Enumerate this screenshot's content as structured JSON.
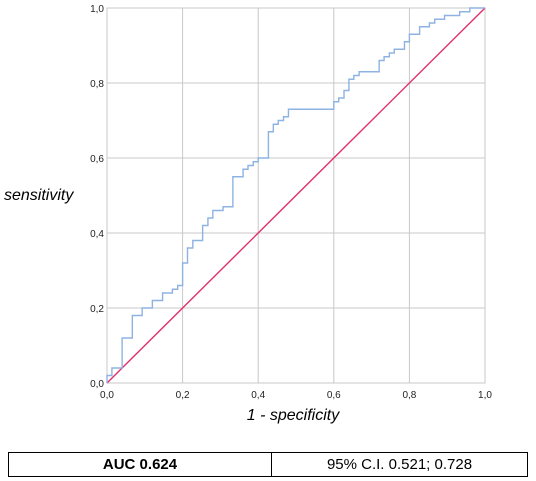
{
  "chart_data": {
    "type": "line",
    "xlabel": "1 - specificity",
    "ylabel": "sensitivity",
    "xlim": [
      0,
      1
    ],
    "ylim": [
      0,
      1
    ],
    "grid": true,
    "x_ticks": [
      "0,0",
      "0,2",
      "0,4",
      "0,6",
      "0,8",
      "1,0"
    ],
    "y_ticks": [
      "0,0",
      "0,2",
      "0,4",
      "0,6",
      "0,8",
      "1,0"
    ],
    "colors": {
      "roc": "#8db3e2",
      "reference": "#e0306c",
      "grid": "#c8c8c8"
    },
    "series": [
      {
        "points": [
          [
            0,
            0
          ],
          [
            0,
            0.02
          ],
          [
            0.013,
            0.02
          ],
          [
            0.013,
            0.04
          ],
          [
            0.04,
            0.04
          ],
          [
            0.04,
            0.12
          ],
          [
            0.067,
            0.12
          ],
          [
            0.067,
            0.18
          ],
          [
            0.093,
            0.18
          ],
          [
            0.093,
            0.2
          ],
          [
            0.12,
            0.2
          ],
          [
            0.12,
            0.22
          ],
          [
            0.147,
            0.22
          ],
          [
            0.147,
            0.24
          ],
          [
            0.173,
            0.24
          ],
          [
            0.173,
            0.25
          ],
          [
            0.187,
            0.25
          ],
          [
            0.187,
            0.26
          ],
          [
            0.2,
            0.26
          ],
          [
            0.2,
            0.32
          ],
          [
            0.213,
            0.32
          ],
          [
            0.213,
            0.36
          ],
          [
            0.227,
            0.36
          ],
          [
            0.227,
            0.38
          ],
          [
            0.253,
            0.38
          ],
          [
            0.253,
            0.42
          ],
          [
            0.267,
            0.42
          ],
          [
            0.267,
            0.44
          ],
          [
            0.28,
            0.44
          ],
          [
            0.28,
            0.46
          ],
          [
            0.307,
            0.46
          ],
          [
            0.307,
            0.47
          ],
          [
            0.333,
            0.47
          ],
          [
            0.333,
            0.55
          ],
          [
            0.36,
            0.55
          ],
          [
            0.36,
            0.57
          ],
          [
            0.373,
            0.57
          ],
          [
            0.373,
            0.58
          ],
          [
            0.387,
            0.58
          ],
          [
            0.387,
            0.59
          ],
          [
            0.4,
            0.59
          ],
          [
            0.4,
            0.6
          ],
          [
            0.427,
            0.6
          ],
          [
            0.427,
            0.67
          ],
          [
            0.44,
            0.67
          ],
          [
            0.44,
            0.69
          ],
          [
            0.453,
            0.69
          ],
          [
            0.453,
            0.7
          ],
          [
            0.467,
            0.7
          ],
          [
            0.467,
            0.71
          ],
          [
            0.48,
            0.71
          ],
          [
            0.48,
            0.73
          ],
          [
            0.6,
            0.73
          ],
          [
            0.6,
            0.75
          ],
          [
            0.613,
            0.75
          ],
          [
            0.613,
            0.76
          ],
          [
            0.627,
            0.76
          ],
          [
            0.627,
            0.78
          ],
          [
            0.64,
            0.78
          ],
          [
            0.64,
            0.81
          ],
          [
            0.653,
            0.81
          ],
          [
            0.653,
            0.82
          ],
          [
            0.667,
            0.82
          ],
          [
            0.667,
            0.83
          ],
          [
            0.72,
            0.83
          ],
          [
            0.72,
            0.86
          ],
          [
            0.733,
            0.86
          ],
          [
            0.733,
            0.87
          ],
          [
            0.747,
            0.87
          ],
          [
            0.747,
            0.88
          ],
          [
            0.76,
            0.88
          ],
          [
            0.76,
            0.89
          ],
          [
            0.787,
            0.89
          ],
          [
            0.787,
            0.91
          ],
          [
            0.8,
            0.91
          ],
          [
            0.8,
            0.93
          ],
          [
            0.827,
            0.93
          ],
          [
            0.827,
            0.95
          ],
          [
            0.853,
            0.95
          ],
          [
            0.853,
            0.96
          ],
          [
            0.867,
            0.96
          ],
          [
            0.867,
            0.97
          ],
          [
            0.893,
            0.97
          ],
          [
            0.893,
            0.98
          ],
          [
            0.933,
            0.98
          ],
          [
            0.933,
            0.99
          ],
          [
            0.96,
            0.99
          ],
          [
            0.96,
            1.0
          ],
          [
            1.0,
            1.0
          ]
        ]
      },
      {
        "points": [
          [
            0,
            0
          ],
          [
            1,
            1
          ]
        ]
      }
    ]
  },
  "table": {
    "auc": "AUC 0.624",
    "ci": "95% C.I. 0.521; 0.728"
  }
}
